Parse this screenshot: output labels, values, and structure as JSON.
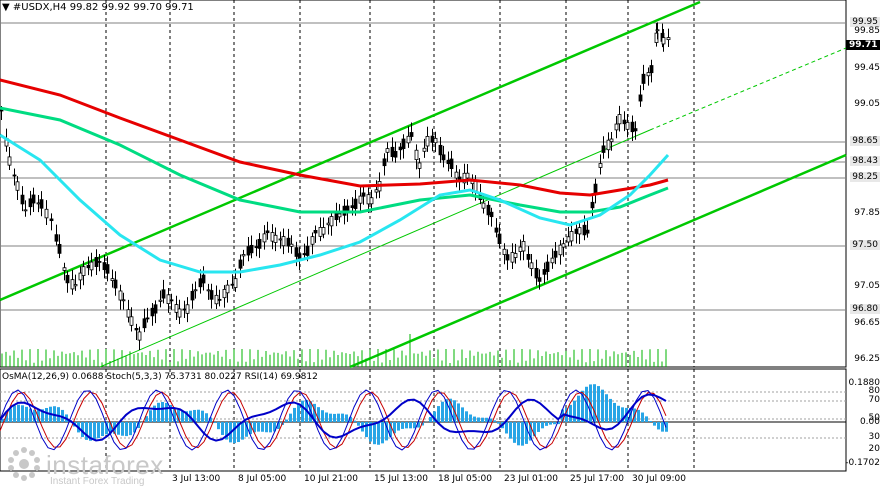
{
  "header": {
    "symbol": "#USDX,H4",
    "ohlc": "99.82 99.92 99.70 99.71"
  },
  "price_axis": {
    "labels": [
      "99.95",
      "99.85",
      "99.45",
      "99.05",
      "98.65",
      "98.43",
      "98.25",
      "97.85",
      "97.50",
      "97.05",
      "96.80",
      "96.65",
      "96.25"
    ],
    "current_price": "99.71"
  },
  "time_axis": {
    "labels": [
      "3 Jul 13:00",
      "8 Jul 05:00",
      "10 Jul 21:00",
      "15 Jul 13:00",
      "18 Jul 05:00",
      "23 Jul 01:00",
      "25 Jul 17:00",
      "30 Jul 09:00"
    ]
  },
  "indicator": {
    "header": "OsMA(12,26,9) 0.0688  Stoch(5,3,3) 75.3731 80.0227  RSI(14) 69.9812",
    "axis_labels": [
      "0.1880",
      "80",
      "70",
      "50",
      "0.00",
      "30",
      "20",
      "-0.1702"
    ]
  },
  "watermark": {
    "brand": "instaforex",
    "tagline": "Instant Forex Trading"
  },
  "colors": {
    "channel": "#00c800",
    "ma_red": "#e60000",
    "ma_green": "#00dc82",
    "ma_cyan": "#28e6f0",
    "candles": "#000000",
    "volume": "#00b400",
    "osma": "#28a5e6",
    "stoch_main": "#0000c8",
    "stoch_signal": "#c80000"
  }
}
